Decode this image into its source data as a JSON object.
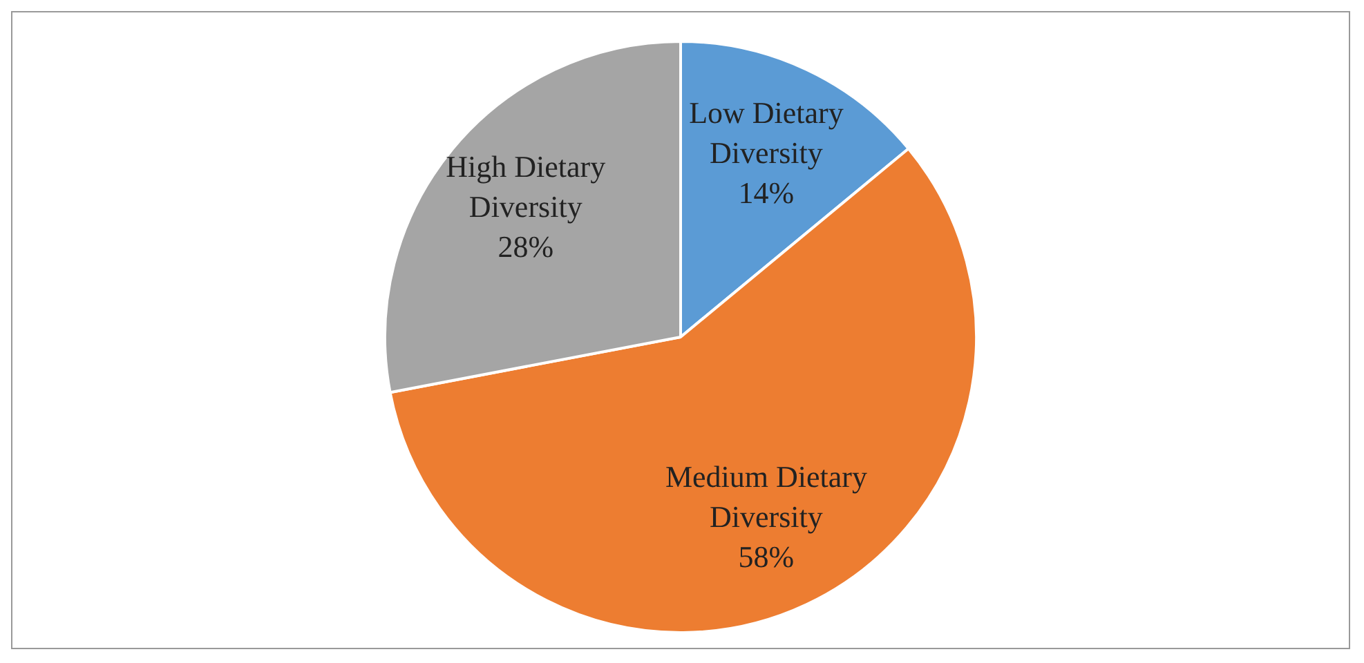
{
  "chart_data": {
    "type": "pie",
    "categories": [
      "Low Dietary Diversity",
      "Medium Dietary Diversity",
      "High Dietary Diversity"
    ],
    "values": [
      14,
      58,
      28
    ],
    "colors": [
      "#5b9bd5",
      "#ed7d31",
      "#a5a5a5"
    ],
    "value_labels": [
      "14%",
      "58%",
      "28%"
    ],
    "legend": false
  }
}
